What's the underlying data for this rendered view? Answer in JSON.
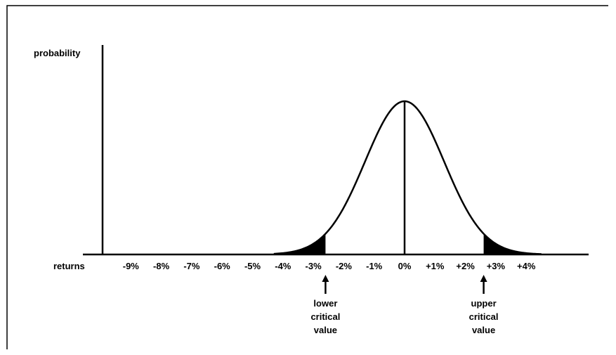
{
  "chart_data": {
    "type": "line",
    "ylabel": "probability",
    "xlabel": "returns",
    "x_ticks": [
      "-9%",
      "-8%",
      "-7%",
      "-6%",
      "-5%",
      "-4%",
      "-3%",
      "-2%",
      "-1%",
      "0%",
      "+1%",
      "+2%",
      "+3%",
      "+4%"
    ],
    "x_values": [
      -9,
      -8,
      -7,
      -6,
      -5,
      -4,
      -3,
      -2,
      -1,
      0,
      1,
      2,
      3,
      4
    ],
    "distribution": {
      "kind": "normal",
      "mean": 0,
      "std_dev": 1.3
    },
    "xlim": [
      -10.1,
      5.5
    ],
    "ylim": [
      0,
      1
    ],
    "grid": false,
    "shaded_tails": [
      {
        "from": -4.0,
        "to": -2.6
      },
      {
        "from": 2.6,
        "to": 4.0
      }
    ],
    "annotations": [
      {
        "x": -2.6,
        "lines": [
          "lower",
          "critical",
          "value"
        ]
      },
      {
        "x": 2.6,
        "lines": [
          "upper",
          "critical",
          "value"
        ]
      }
    ]
  }
}
